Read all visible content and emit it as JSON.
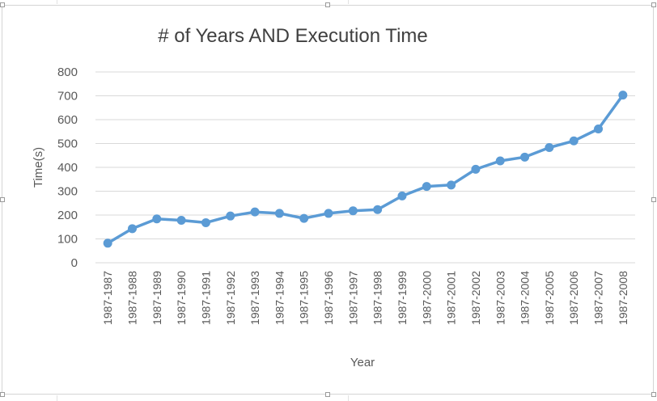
{
  "chart_data": {
    "type": "line",
    "title": "# of Years AND Execution Time",
    "xlabel": "Year",
    "ylabel": "Time(s)",
    "ylim": [
      0,
      800
    ],
    "yticks": [
      0,
      100,
      200,
      300,
      400,
      500,
      600,
      700,
      800
    ],
    "grid": true,
    "legend": "none",
    "color": "#5b9bd5",
    "categories": [
      "1987-1987",
      "1987-1988",
      "1987-1989",
      "1987-1990",
      "1987-1991",
      "1987-1992",
      "1987-1993",
      "1987-1994",
      "1987-1995",
      "1987-1996",
      "1987-1997",
      "1987-1998",
      "1987-1999",
      "1987-2000",
      "1987-2001",
      "1987-2002",
      "1987-2003",
      "1987-2004",
      "1987-2005",
      "1987-2006",
      "1987-2007",
      "1987-2008"
    ],
    "values": [
      82,
      143,
      184,
      178,
      168,
      196,
      213,
      207,
      186,
      207,
      218,
      223,
      280,
      320,
      326,
      392,
      427,
      443,
      483,
      511,
      561,
      703
    ]
  }
}
